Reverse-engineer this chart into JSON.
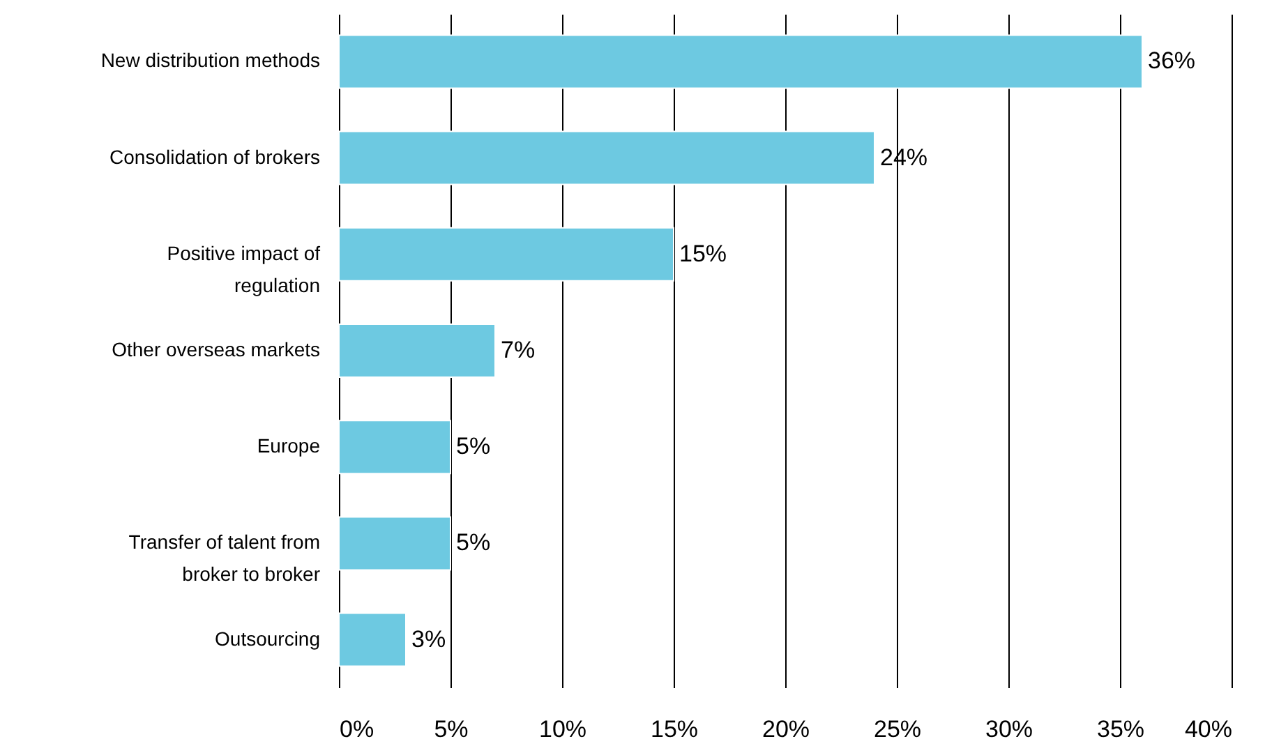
{
  "chart_data": {
    "type": "bar",
    "orientation": "horizontal",
    "categories": [
      "New distribution methods",
      "Consolidation of brokers",
      "Positive impact of regulation",
      "Other overseas markets",
      "Europe",
      "Transfer of talent from broker to broker",
      "Outsourcing"
    ],
    "values": [
      36,
      24,
      15,
      7,
      5,
      5,
      3
    ],
    "value_labels": [
      "36%",
      "24%",
      "15%",
      "7%",
      "5%",
      "5%",
      "3%"
    ],
    "color": "#6dc9e1",
    "xlim": [
      0,
      40
    ],
    "xticks": [
      {
        "value": 0,
        "label": "0%"
      },
      {
        "value": 5,
        "label": "5%"
      },
      {
        "value": 10,
        "label": "10%"
      },
      {
        "value": 15,
        "label": "15%"
      },
      {
        "value": 20,
        "label": "20%"
      },
      {
        "value": 25,
        "label": "25%"
      },
      {
        "value": 30,
        "label": "30%"
      },
      {
        "value": 35,
        "label": "35%"
      },
      {
        "value": 40,
        "label": "40%"
      }
    ],
    "grid": "x"
  }
}
